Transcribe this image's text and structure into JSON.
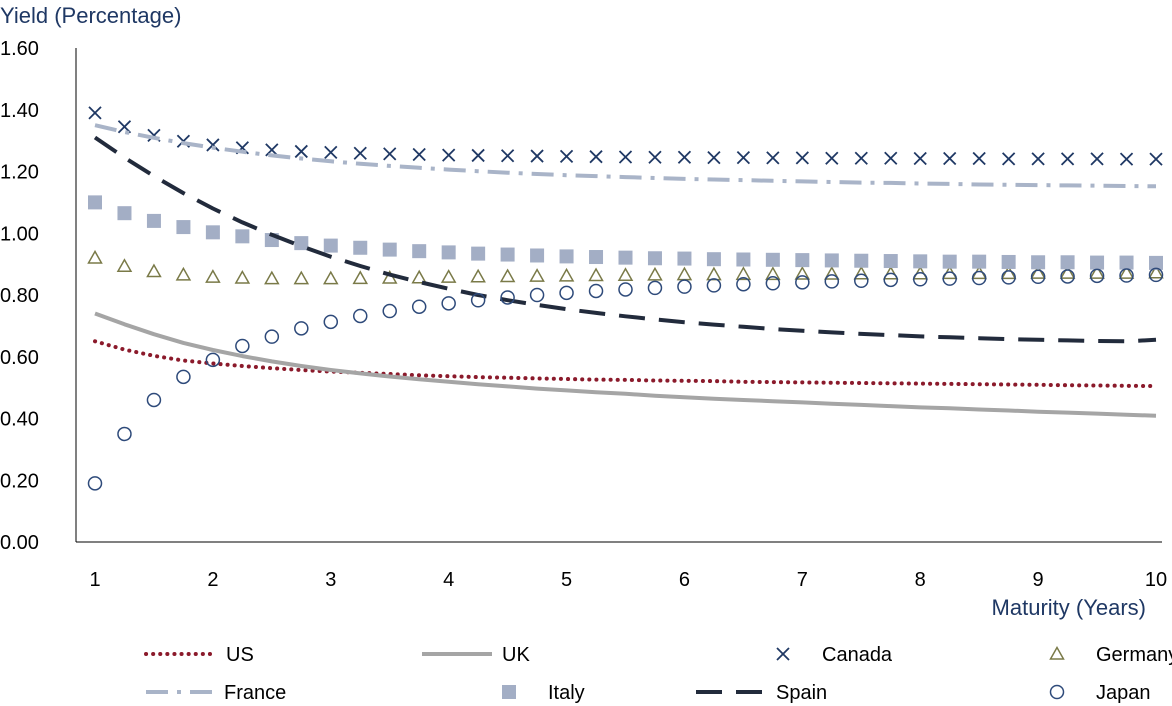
{
  "chart_data": {
    "type": "line",
    "ylabel": "Yield (Percentage)",
    "xlabel": "Maturity (Years)",
    "xlim": [
      1,
      10
    ],
    "ylim": [
      0,
      1.6
    ],
    "xticks": [
      "1",
      "2",
      "3",
      "4",
      "5",
      "6",
      "7",
      "8",
      "9",
      "10"
    ],
    "yticks": [
      "0.00",
      "0.20",
      "0.40",
      "0.60",
      "0.80",
      "1.00",
      "1.20",
      "1.40",
      "1.60"
    ],
    "grid": false,
    "legend_position": "bottom",
    "x": [
      1,
      1.25,
      1.5,
      1.75,
      2,
      2.25,
      2.5,
      2.75,
      3,
      3.25,
      3.5,
      3.75,
      4,
      4.25,
      4.5,
      4.75,
      5,
      5.25,
      5.5,
      5.75,
      6,
      6.25,
      6.5,
      6.75,
      7,
      7.25,
      7.5,
      7.75,
      8,
      8.25,
      8.5,
      8.75,
      9,
      9.25,
      9.5,
      9.75,
      10
    ],
    "series": [
      {
        "name": "US",
        "style": "dotted",
        "color": "#8b1a2b",
        "values": [
          0.65,
          0.623,
          0.603,
          0.588,
          0.578,
          0.57,
          0.563,
          0.557,
          0.552,
          0.548,
          0.544,
          0.54,
          0.537,
          0.534,
          0.532,
          0.53,
          0.528,
          0.526,
          0.525,
          0.523,
          0.522,
          0.521,
          0.519,
          0.518,
          0.517,
          0.516,
          0.515,
          0.514,
          0.513,
          0.512,
          0.511,
          0.51,
          0.509,
          0.508,
          0.507,
          0.506,
          0.505
        ]
      },
      {
        "name": "UK",
        "style": "solid",
        "color": "#a5a5a5",
        "values": [
          0.74,
          0.705,
          0.673,
          0.645,
          0.622,
          0.602,
          0.585,
          0.57,
          0.557,
          0.546,
          0.536,
          0.527,
          0.519,
          0.511,
          0.504,
          0.497,
          0.491,
          0.485,
          0.48,
          0.474,
          0.469,
          0.464,
          0.46,
          0.456,
          0.452,
          0.448,
          0.444,
          0.44,
          0.436,
          0.433,
          0.429,
          0.426,
          0.422,
          0.419,
          0.416,
          0.412,
          0.409
        ]
      },
      {
        "name": "Canada",
        "style": "marker-x",
        "color": "#1f3864",
        "values": [
          1.39,
          1.345,
          1.317,
          1.298,
          1.286,
          1.277,
          1.27,
          1.265,
          1.262,
          1.259,
          1.257,
          1.255,
          1.253,
          1.252,
          1.251,
          1.25,
          1.249,
          1.248,
          1.247,
          1.246,
          1.246,
          1.245,
          1.245,
          1.244,
          1.244,
          1.243,
          1.243,
          1.243,
          1.242,
          1.242,
          1.242,
          1.241,
          1.241,
          1.241,
          1.241,
          1.24,
          1.24
        ]
      },
      {
        "name": "Germany",
        "style": "marker-triangle",
        "color": "#7a7a48",
        "values": [
          0.92,
          0.893,
          0.876,
          0.865,
          0.858,
          0.855,
          0.853,
          0.853,
          0.853,
          0.854,
          0.855,
          0.856,
          0.858,
          0.859,
          0.86,
          0.861,
          0.862,
          0.863,
          0.864,
          0.865,
          0.866,
          0.866,
          0.867,
          0.867,
          0.868,
          0.868,
          0.869,
          0.869,
          0.869,
          0.87,
          0.87,
          0.87,
          0.871,
          0.871,
          0.871,
          0.871,
          0.872
        ]
      },
      {
        "name": "France",
        "style": "dash-dot",
        "color": "#a9b4c8",
        "values": [
          1.35,
          1.328,
          1.309,
          1.292,
          1.277,
          1.264,
          1.252,
          1.242,
          1.233,
          1.225,
          1.218,
          1.212,
          1.206,
          1.201,
          1.196,
          1.192,
          1.188,
          1.185,
          1.182,
          1.179,
          1.176,
          1.174,
          1.172,
          1.17,
          1.168,
          1.166,
          1.164,
          1.163,
          1.161,
          1.16,
          1.158,
          1.157,
          1.156,
          1.155,
          1.154,
          1.153,
          1.152
        ]
      },
      {
        "name": "Italy",
        "style": "marker-square",
        "color": "#a3aec5",
        "values": [
          1.1,
          1.065,
          1.04,
          1.02,
          1.003,
          0.99,
          0.978,
          0.968,
          0.96,
          0.953,
          0.947,
          0.942,
          0.938,
          0.934,
          0.931,
          0.928,
          0.925,
          0.923,
          0.921,
          0.919,
          0.918,
          0.916,
          0.915,
          0.914,
          0.913,
          0.912,
          0.911,
          0.91,
          0.909,
          0.908,
          0.908,
          0.907,
          0.906,
          0.906,
          0.905,
          0.905,
          0.904
        ]
      },
      {
        "name": "Spain",
        "style": "dashed",
        "color": "#222b3c",
        "values": [
          1.31,
          1.245,
          1.185,
          1.13,
          1.08,
          1.035,
          0.995,
          0.958,
          0.924,
          0.894,
          0.866,
          0.842,
          0.82,
          0.8,
          0.783,
          0.768,
          0.754,
          0.742,
          0.731,
          0.721,
          0.712,
          0.704,
          0.697,
          0.69,
          0.684,
          0.679,
          0.674,
          0.67,
          0.666,
          0.663,
          0.66,
          0.657,
          0.655,
          0.653,
          0.651,
          0.65,
          0.655
        ]
      },
      {
        "name": "Japan",
        "style": "marker-circle",
        "color": "#2e4a7a",
        "values": [
          0.19,
          0.35,
          0.46,
          0.535,
          0.59,
          0.635,
          0.665,
          0.692,
          0.713,
          0.732,
          0.748,
          0.762,
          0.773,
          0.783,
          0.792,
          0.8,
          0.807,
          0.813,
          0.818,
          0.823,
          0.827,
          0.831,
          0.835,
          0.838,
          0.841,
          0.844,
          0.846,
          0.849,
          0.851,
          0.853,
          0.855,
          0.857,
          0.859,
          0.86,
          0.862,
          0.863,
          0.865
        ]
      }
    ]
  }
}
